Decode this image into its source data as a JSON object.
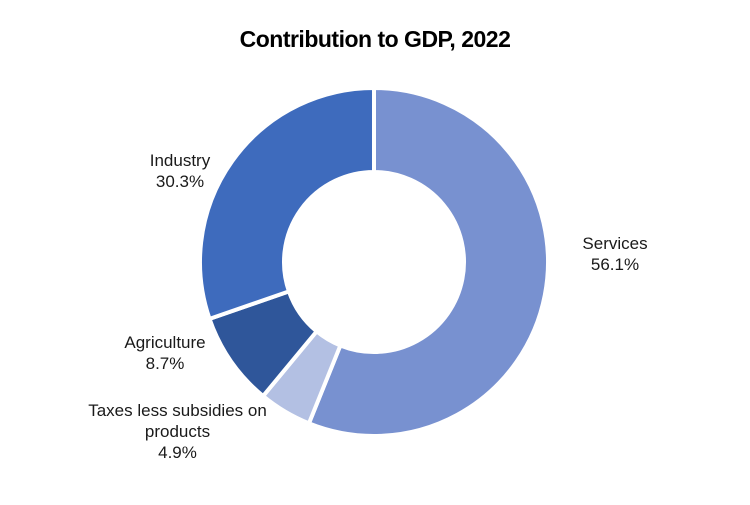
{
  "chart_data": {
    "type": "pie",
    "title": "Contribution to GDP, 2022",
    "categories": [
      "Services",
      "Taxes less subsidies on products",
      "Agriculture",
      "Industry"
    ],
    "values": [
      56.1,
      4.9,
      8.7,
      30.3
    ],
    "value_labels": [
      "56.1%",
      "4.9%",
      "8.7%",
      "30.3%"
    ],
    "label_lines": [
      [
        "Services"
      ],
      [
        "Taxes less subsidies on",
        "products"
      ],
      [
        "Agriculture"
      ],
      [
        "Industry"
      ]
    ],
    "colors": [
      "#7891d0",
      "#b3c0e3",
      "#2f569a",
      "#3e6bbd"
    ],
    "hole": "donut",
    "legend": "none"
  }
}
